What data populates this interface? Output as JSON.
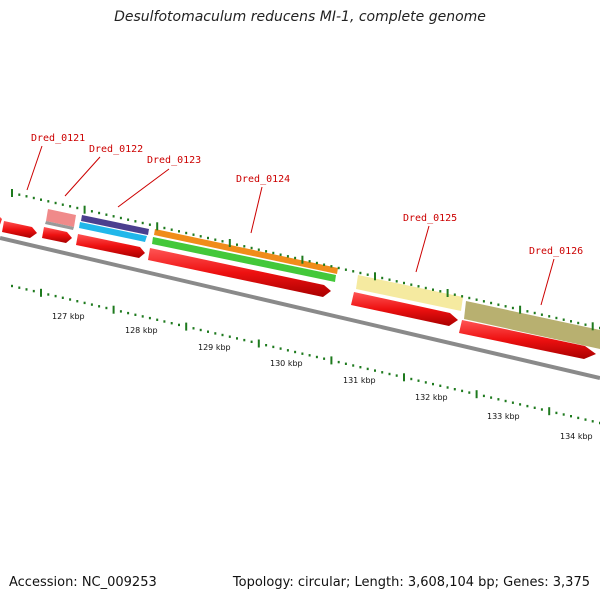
{
  "title": "Desulfotomaculum reducens MI-1, complete genome",
  "footer": {
    "accession": "Accession: NC_009253",
    "topology": "Topology: circular; Length: 3,608,104 bp; Genes: 3,375"
  },
  "colors": {
    "backbone": "#7a7a7a",
    "cds": "#ee1111",
    "label": "#cc0000",
    "tick": "#1e7a1e"
  },
  "genes": [
    {
      "name": "Dred_0121"
    },
    {
      "name": "Dred_0122"
    },
    {
      "name": "Dred_0123"
    },
    {
      "name": "Dred_0124"
    },
    {
      "name": "Dred_0125"
    },
    {
      "name": "Dred_0126"
    }
  ],
  "scale_labels": [
    "127 kbp",
    "128 kbp",
    "129 kbp",
    "130 kbp",
    "131 kbp",
    "132 kbp",
    "133 kbp",
    "134 kbp"
  ]
}
